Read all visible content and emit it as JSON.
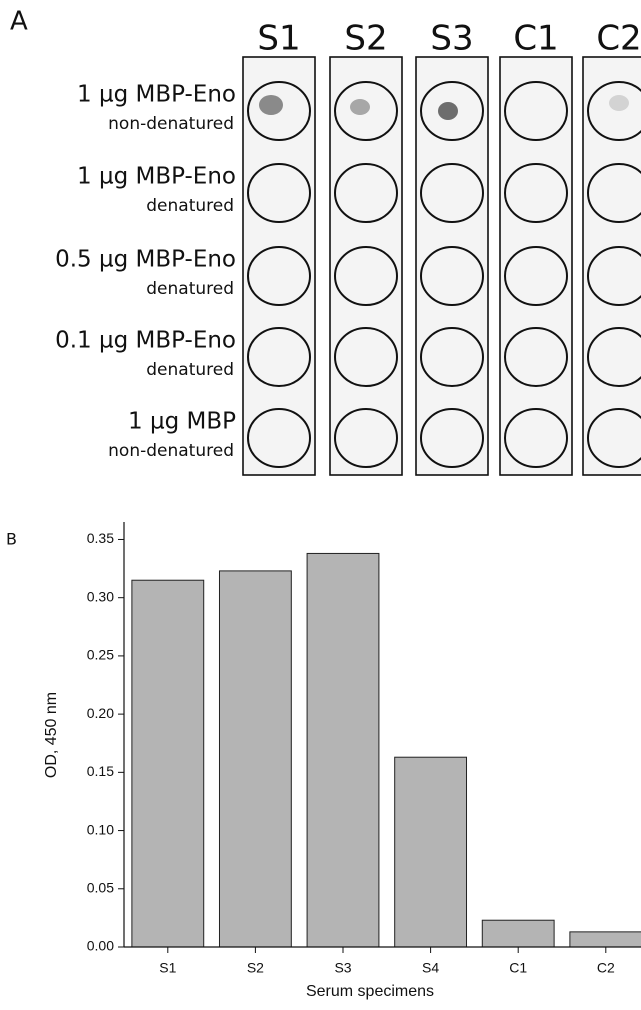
{
  "panel_a": {
    "label": "A",
    "columns": [
      "S1",
      "S2",
      "S3",
      "C1",
      "C2"
    ],
    "rows": [
      {
        "amount": "1 µg MBP-Eno",
        "state": "non-denatured"
      },
      {
        "amount": "1 µg MBP-Eno",
        "state": "denatured"
      },
      {
        "amount": "0.5 µg MBP-Eno",
        "state": "denatured"
      },
      {
        "amount": "0.1 µg MBP-Eno",
        "state": "denatured"
      },
      {
        "amount": "1 µg MBP",
        "state": "non-denatured"
      }
    ]
  },
  "panel_b_label": "B",
  "chart_data": {
    "type": "bar",
    "categories": [
      "S1",
      "S2",
      "S3",
      "S4",
      "C1",
      "C2"
    ],
    "values": [
      0.315,
      0.323,
      0.338,
      0.163,
      0.023,
      0.013
    ],
    "color": "#b4b4b4",
    "x_label": "Serum specimens",
    "y_label": "OD, 450 nm",
    "ylim": [
      0,
      0.365
    ],
    "yticks": [
      {
        "value": 0,
        "label": "0.00"
      },
      {
        "value": 0.05,
        "label": "0.05"
      },
      {
        "value": 0.1,
        "label": "0.10"
      },
      {
        "value": 0.15,
        "label": "0.15"
      },
      {
        "value": 0.2,
        "label": "0.20"
      },
      {
        "value": 0.25,
        "label": "0.25"
      },
      {
        "value": 0.3,
        "label": "0.30"
      },
      {
        "value": 0.35,
        "label": "0.35"
      }
    ]
  }
}
